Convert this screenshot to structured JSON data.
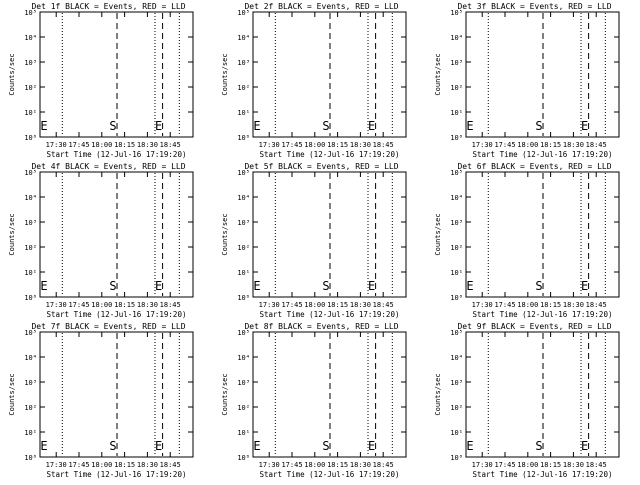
{
  "chart_data": [
    {
      "type": "line",
      "title": "Det 1f BLACK = Events, RED = LLD",
      "xlabel": "Start Time (12-Jul-16 17:19:20)",
      "ylabel": "Counts/sec",
      "xticks": [
        "17:30",
        "17:45",
        "18:00",
        "18:15",
        "18:30",
        "18:45"
      ],
      "yticks": [
        "10⁰",
        "10¹",
        "10²",
        "10³",
        "10⁴",
        "10⁵"
      ],
      "xlim": [
        "17:19:20",
        "19:00"
      ],
      "ylim": [
        1,
        100000
      ],
      "yscale": "log",
      "series": [],
      "markers": [
        {
          "label": "E",
          "time": "17:19:20",
          "style": "none"
        },
        {
          "label": "",
          "time": "17:34",
          "style": "dotted"
        },
        {
          "label": "S",
          "time": "18:10",
          "style": "dashed"
        },
        {
          "label": "",
          "time": "18:35",
          "style": "dotted"
        },
        {
          "label": "E",
          "time": "18:40",
          "style": "dashed"
        },
        {
          "label": "",
          "time": "18:51",
          "style": "dotted"
        }
      ]
    },
    {
      "type": "line",
      "title": "Det 2f BLACK = Events, RED = LLD",
      "xlabel": "Start Time (12-Jul-16 17:19:20)",
      "ylabel": "Counts/sec",
      "xticks": [
        "17:30",
        "17:45",
        "18:00",
        "18:15",
        "18:30",
        "18:45"
      ],
      "yticks": [
        "10⁰",
        "10¹",
        "10²",
        "10³",
        "10⁴",
        "10⁵"
      ],
      "xlim": [
        "17:19:20",
        "19:00"
      ],
      "ylim": [
        1,
        100000
      ],
      "yscale": "log",
      "series": [],
      "markers": [
        {
          "label": "E",
          "time": "17:19:20",
          "style": "none"
        },
        {
          "label": "",
          "time": "17:34",
          "style": "dotted"
        },
        {
          "label": "S",
          "time": "18:10",
          "style": "dashed"
        },
        {
          "label": "",
          "time": "18:35",
          "style": "dotted"
        },
        {
          "label": "E",
          "time": "18:40",
          "style": "dashed"
        },
        {
          "label": "",
          "time": "18:51",
          "style": "dotted"
        }
      ]
    },
    {
      "type": "line",
      "title": "Det 3f BLACK = Events, RED = LLD",
      "xlabel": "Start Time (12-Jul-16 17:19:20)",
      "ylabel": "Counts/sec",
      "xticks": [
        "17:30",
        "17:45",
        "18:00",
        "18:15",
        "18:30",
        "18:45"
      ],
      "yticks": [
        "10⁰",
        "10¹",
        "10²",
        "10³",
        "10⁴",
        "10⁵"
      ],
      "xlim": [
        "17:19:20",
        "19:00"
      ],
      "ylim": [
        1,
        100000
      ],
      "yscale": "log",
      "series": [],
      "markers": [
        {
          "label": "E",
          "time": "17:19:20",
          "style": "none"
        },
        {
          "label": "",
          "time": "17:34",
          "style": "dotted"
        },
        {
          "label": "S",
          "time": "18:10",
          "style": "dashed"
        },
        {
          "label": "",
          "time": "18:35",
          "style": "dotted"
        },
        {
          "label": "E",
          "time": "18:40",
          "style": "dashed"
        },
        {
          "label": "",
          "time": "18:51",
          "style": "dotted"
        }
      ]
    },
    {
      "type": "line",
      "title": "Det 4f BLACK = Events, RED = LLD",
      "xlabel": "Start Time (12-Jul-16 17:19:20)",
      "ylabel": "Counts/sec",
      "xticks": [
        "17:30",
        "17:45",
        "18:00",
        "18:15",
        "18:30",
        "18:45"
      ],
      "yticks": [
        "10⁰",
        "10¹",
        "10²",
        "10³",
        "10⁴",
        "10⁵"
      ],
      "xlim": [
        "17:19:20",
        "19:00"
      ],
      "ylim": [
        1,
        100000
      ],
      "yscale": "log",
      "series": [],
      "markers": [
        {
          "label": "E",
          "time": "17:19:20",
          "style": "none"
        },
        {
          "label": "",
          "time": "17:34",
          "style": "dotted"
        },
        {
          "label": "S",
          "time": "18:10",
          "style": "dashed"
        },
        {
          "label": "",
          "time": "18:35",
          "style": "dotted"
        },
        {
          "label": "E",
          "time": "18:40",
          "style": "dashed"
        },
        {
          "label": "",
          "time": "18:51",
          "style": "dotted"
        }
      ]
    },
    {
      "type": "line",
      "title": "Det 5f BLACK = Events, RED = LLD",
      "xlabel": "Start Time (12-Jul-16 17:19:20)",
      "ylabel": "Counts/sec",
      "xticks": [
        "17:30",
        "17:45",
        "18:00",
        "18:15",
        "18:30",
        "18:45"
      ],
      "yticks": [
        "10⁰",
        "10¹",
        "10²",
        "10³",
        "10⁴",
        "10⁵"
      ],
      "xlim": [
        "17:19:20",
        "19:00"
      ],
      "ylim": [
        1,
        100000
      ],
      "yscale": "log",
      "series": [],
      "markers": [
        {
          "label": "E",
          "time": "17:19:20",
          "style": "none"
        },
        {
          "label": "",
          "time": "17:34",
          "style": "dotted"
        },
        {
          "label": "S",
          "time": "18:10",
          "style": "dashed"
        },
        {
          "label": "",
          "time": "18:35",
          "style": "dotted"
        },
        {
          "label": "E",
          "time": "18:40",
          "style": "dashed"
        },
        {
          "label": "",
          "time": "18:51",
          "style": "dotted"
        }
      ]
    },
    {
      "type": "line",
      "title": "Det 6f BLACK = Events, RED = LLD",
      "xlabel": "Start Time (12-Jul-16 17:19:20)",
      "ylabel": "Counts/sec",
      "xticks": [
        "17:30",
        "17:45",
        "18:00",
        "18:15",
        "18:30",
        "18:45"
      ],
      "yticks": [
        "10⁰",
        "10¹",
        "10²",
        "10³",
        "10⁴",
        "10⁵"
      ],
      "xlim": [
        "17:19:20",
        "19:00"
      ],
      "ylim": [
        1,
        100000
      ],
      "yscale": "log",
      "series": [],
      "markers": [
        {
          "label": "E",
          "time": "17:19:20",
          "style": "none"
        },
        {
          "label": "",
          "time": "17:34",
          "style": "dotted"
        },
        {
          "label": "S",
          "time": "18:10",
          "style": "dashed"
        },
        {
          "label": "",
          "time": "18:35",
          "style": "dotted"
        },
        {
          "label": "E",
          "time": "18:40",
          "style": "dashed"
        },
        {
          "label": "",
          "time": "18:51",
          "style": "dotted"
        }
      ]
    },
    {
      "type": "line",
      "title": "Det 7f BLACK = Events, RED = LLD",
      "xlabel": "Start Time (12-Jul-16 17:19:20)",
      "ylabel": "Counts/sec",
      "xticks": [
        "17:30",
        "17:45",
        "18:00",
        "18:15",
        "18:30",
        "18:45"
      ],
      "yticks": [
        "10⁰",
        "10¹",
        "10²",
        "10³",
        "10⁴",
        "10⁵"
      ],
      "xlim": [
        "17:19:20",
        "19:00"
      ],
      "ylim": [
        1,
        100000
      ],
      "yscale": "log",
      "series": [],
      "markers": [
        {
          "label": "E",
          "time": "17:19:20",
          "style": "none"
        },
        {
          "label": "",
          "time": "17:34",
          "style": "dotted"
        },
        {
          "label": "S",
          "time": "18:10",
          "style": "dashed"
        },
        {
          "label": "",
          "time": "18:35",
          "style": "dotted"
        },
        {
          "label": "E",
          "time": "18:40",
          "style": "dashed"
        },
        {
          "label": "",
          "time": "18:51",
          "style": "dotted"
        }
      ]
    },
    {
      "type": "line",
      "title": "Det 8f BLACK = Events, RED = LLD",
      "xlabel": "Start Time (12-Jul-16 17:19:20)",
      "ylabel": "Counts/sec",
      "xticks": [
        "17:30",
        "17:45",
        "18:00",
        "18:15",
        "18:30",
        "18:45"
      ],
      "yticks": [
        "10⁰",
        "10¹",
        "10²",
        "10³",
        "10⁴",
        "10⁵"
      ],
      "xlim": [
        "17:19:20",
        "19:00"
      ],
      "ylim": [
        1,
        100000
      ],
      "yscale": "log",
      "series": [],
      "markers": [
        {
          "label": "E",
          "time": "17:19:20",
          "style": "none"
        },
        {
          "label": "",
          "time": "17:34",
          "style": "dotted"
        },
        {
          "label": "S",
          "time": "18:10",
          "style": "dashed"
        },
        {
          "label": "",
          "time": "18:35",
          "style": "dotted"
        },
        {
          "label": "E",
          "time": "18:40",
          "style": "dashed"
        },
        {
          "label": "",
          "time": "18:51",
          "style": "dotted"
        }
      ]
    },
    {
      "type": "line",
      "title": "Det 9f BLACK = Events, RED = LLD",
      "xlabel": "Start Time (12-Jul-16 17:19:20)",
      "ylabel": "Counts/sec",
      "xticks": [
        "17:30",
        "17:45",
        "18:00",
        "18:15",
        "18:30",
        "18:45"
      ],
      "yticks": [
        "10⁰",
        "10¹",
        "10²",
        "10³",
        "10⁴",
        "10⁵"
      ],
      "xlim": [
        "17:19:20",
        "19:00"
      ],
      "ylim": [
        1,
        100000
      ],
      "yscale": "log",
      "series": [],
      "markers": [
        {
          "label": "E",
          "time": "17:19:20",
          "style": "none"
        },
        {
          "label": "",
          "time": "17:34",
          "style": "dotted"
        },
        {
          "label": "S",
          "time": "18:10",
          "style": "dashed"
        },
        {
          "label": "",
          "time": "18:35",
          "style": "dotted"
        },
        {
          "label": "E",
          "time": "18:40",
          "style": "dashed"
        },
        {
          "label": "",
          "time": "18:51",
          "style": "dotted"
        }
      ]
    }
  ]
}
